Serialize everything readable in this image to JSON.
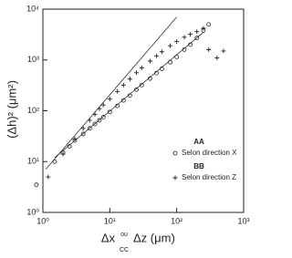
{
  "chart_data": {
    "type": "scatter",
    "y_label": "(Δh)² (μm²)",
    "x_label": "Δx",
    "x_label_mid": "ou",
    "x_label_end": "Δz (μm)",
    "x_label_sub": "CC",
    "log_x": true,
    "log_y": true,
    "xlim": [
      1,
      1000
    ],
    "ylim": [
      1,
      10000
    ],
    "xticks": [
      {
        "value": 1,
        "label": "10⁰"
      },
      {
        "value": 10,
        "label": "10¹"
      },
      {
        "value": 100,
        "label": "10²"
      },
      {
        "value": 1000,
        "label": "10³"
      }
    ],
    "yticks": [
      {
        "value": 1,
        "label": "10⁰"
      },
      {
        "value": 10,
        "label": "10¹"
      },
      {
        "value": 100,
        "label": "10²"
      },
      {
        "value": 1000,
        "label": "10³"
      },
      {
        "value": 10000,
        "label": "10⁴"
      }
    ],
    "series": [
      {
        "name": "Selon direction X",
        "group": "AA",
        "marker": "circle",
        "color": "#222",
        "x": [
          0.8,
          1.5,
          2,
          2.5,
          3,
          4,
          5,
          6,
          7,
          8,
          10,
          13,
          16,
          20,
          25,
          30,
          40,
          50,
          60,
          80,
          100,
          130,
          160,
          200,
          250,
          300
        ],
        "values": [
          3.5,
          10,
          15,
          20,
          26,
          35,
          45,
          55,
          65,
          75,
          95,
          125,
          160,
          200,
          260,
          320,
          430,
          550,
          670,
          900,
          1150,
          1600,
          2000,
          2700,
          3800,
          5000
        ]
      },
      {
        "name": "Selon direction Z",
        "group": "BB",
        "marker": "plus",
        "color": "#222",
        "x": [
          1.2,
          2,
          3,
          4,
          5,
          6,
          7,
          8,
          10,
          13,
          16,
          20,
          25,
          30,
          40,
          50,
          60,
          80,
          100,
          130,
          160,
          200,
          250,
          300,
          400,
          500
        ],
        "values": [
          5,
          14,
          28,
          45,
          65,
          85,
          110,
          130,
          170,
          240,
          320,
          420,
          560,
          700,
          950,
          1200,
          1450,
          1900,
          2300,
          2800,
          3200,
          3600,
          4200,
          1600,
          1100,
          1500
        ]
      }
    ],
    "fit_lines": [
      {
        "x": [
          1.1,
          100
        ],
        "values": [
          7,
          7000
        ]
      },
      {
        "x": [
          1.5,
          250
        ],
        "values": [
          12,
          3500
        ]
      }
    ]
  }
}
